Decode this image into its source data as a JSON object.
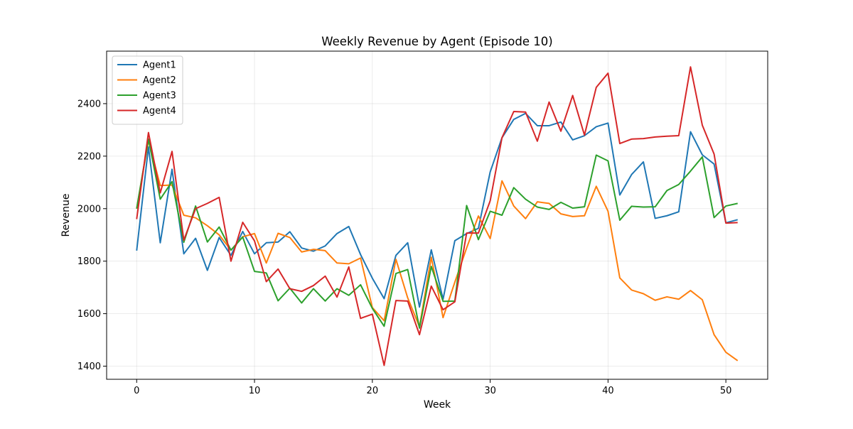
{
  "chart_data": {
    "type": "line",
    "title": "Weekly Revenue by Agent (Episode 10)",
    "xlabel": "Week",
    "ylabel": "Revenue",
    "xlim": [
      -2.55,
      53.55
    ],
    "ylim": [
      1350,
      2600
    ],
    "xticks": [
      0,
      10,
      20,
      30,
      40,
      50
    ],
    "yticks": [
      1400,
      1600,
      1800,
      2000,
      2200,
      2400
    ],
    "grid": true,
    "legend": "top-left",
    "x": [
      0,
      1,
      2,
      3,
      4,
      5,
      6,
      7,
      8,
      9,
      10,
      11,
      12,
      13,
      14,
      15,
      16,
      17,
      18,
      19,
      20,
      21,
      22,
      23,
      24,
      25,
      26,
      27,
      28,
      29,
      30,
      31,
      32,
      33,
      34,
      35,
      36,
      37,
      38,
      39,
      40,
      41,
      42,
      43,
      44,
      45,
      46,
      47,
      48,
      49,
      50,
      51
    ],
    "series": [
      {
        "name": "Agent1",
        "color": "#1f77b4",
        "values": [
          1840,
          2235,
          1870,
          2150,
          1828,
          1887,
          1765,
          1890,
          1822,
          1913,
          1828,
          1870,
          1873,
          1912,
          1850,
          1838,
          1858,
          1905,
          1932,
          1825,
          1735,
          1657,
          1822,
          1870,
          1625,
          1843,
          1655,
          1878,
          1905,
          1925,
          2140,
          2270,
          2340,
          2363,
          2316,
          2316,
          2330,
          2262,
          2278,
          2312,
          2326,
          2052,
          2130,
          2178,
          1963,
          1973,
          1988,
          2293,
          2205,
          2170,
          1946,
          1958
        ]
      },
      {
        "name": "Agent2",
        "color": "#ff7f0e",
        "values": [
          2000,
          2260,
          2088,
          2090,
          1975,
          1965,
          1935,
          1900,
          1842,
          1893,
          1905,
          1793,
          1906,
          1890,
          1835,
          1845,
          1840,
          1793,
          1790,
          1812,
          1623,
          1573,
          1807,
          1660,
          1550,
          1815,
          1585,
          1720,
          1850,
          1972,
          1886,
          2106,
          2010,
          1962,
          2026,
          2020,
          1980,
          1970,
          1973,
          2085,
          1990,
          1736,
          1690,
          1676,
          1651,
          1664,
          1655,
          1688,
          1653,
          1520,
          1453,
          1421
        ]
      },
      {
        "name": "Agent3",
        "color": "#2ca02c",
        "values": [
          2000,
          2265,
          2036,
          2103,
          1872,
          2010,
          1873,
          1930,
          1842,
          1892,
          1761,
          1755,
          1649,
          1697,
          1641,
          1695,
          1648,
          1695,
          1670,
          1710,
          1620,
          1552,
          1753,
          1768,
          1545,
          1780,
          1647,
          1648,
          2012,
          1882,
          1990,
          1975,
          2080,
          2036,
          2006,
          1997,
          2024,
          2002,
          2007,
          2204,
          2182,
          1956,
          2009,
          2006,
          2007,
          2069,
          2092,
          2143,
          2197,
          1966,
          2010,
          2020
        ]
      },
      {
        "name": "Agent4",
        "color": "#d62728",
        "values": [
          1960,
          2290,
          2060,
          2218,
          1880,
          2000,
          2020,
          2043,
          1800,
          1948,
          1877,
          1722,
          1770,
          1695,
          1685,
          1707,
          1743,
          1663,
          1778,
          1582,
          1598,
          1403,
          1650,
          1648,
          1520,
          1705,
          1615,
          1645,
          1907,
          1907,
          2030,
          2270,
          2370,
          2368,
          2257,
          2406,
          2295,
          2431,
          2280,
          2462,
          2516,
          2248,
          2265,
          2267,
          2273,
          2276,
          2278,
          2540,
          2318,
          2208,
          1945,
          1947
        ]
      }
    ]
  }
}
